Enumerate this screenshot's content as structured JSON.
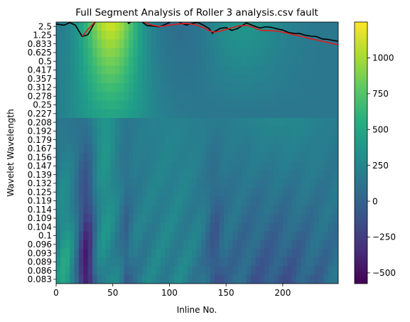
{
  "chart_data": {
    "type": "heatmap",
    "title": "Full Segment Analysis of Roller 3 analysis.csv fault",
    "xlabel": "Inline No.",
    "ylabel": "Wavelet Wavelength",
    "xlim": [
      0,
      249
    ],
    "x_ticks": [
      "0",
      "50",
      "100",
      "150",
      "200"
    ],
    "x_tick_values": [
      0,
      50,
      100,
      150,
      200
    ],
    "y_tick_labels": [
      "2.5",
      "1.25",
      "0.833",
      "0.625",
      "0.5",
      "0.417",
      "0.357",
      "0.312",
      "0.278",
      "0.25",
      "0.227",
      "0.208",
      "0.192",
      "0.179",
      "0.167",
      "0.156",
      "0.147",
      "0.139",
      "0.132",
      "0.125",
      "0.119",
      "0.114",
      "0.109",
      "0.104",
      "0.1",
      "0.096",
      "0.093",
      "0.089",
      "0.086",
      "0.083"
    ],
    "colormap": "viridis",
    "colorbar": {
      "min": -575,
      "max": 1250,
      "ticks": [
        "1000",
        "750",
        "500",
        "250",
        "0",
        "−250",
        "−500"
      ],
      "tick_values": [
        1000,
        750,
        500,
        250,
        0,
        -250,
        -500
      ]
    },
    "series": [
      {
        "color": "#000000",
        "x": [
          0,
          7,
          12,
          17,
          23,
          28,
          35,
          40,
          45,
          50,
          55,
          58,
          64,
          70,
          75,
          80,
          85,
          91,
          95,
          100,
          105,
          110,
          115,
          120,
          125,
          130,
          135,
          138,
          140,
          145,
          150,
          155,
          160,
          168,
          175,
          180,
          185,
          190,
          195,
          200,
          205,
          210,
          215,
          220,
          225,
          230,
          235,
          240,
          245,
          249
        ],
        "y": [
          29.27,
          29.14,
          29.44,
          29.14,
          27.84,
          28.04,
          29.64,
          30.04,
          30.44,
          30.84,
          31.09,
          30.59,
          29.34,
          29.9,
          29.6,
          29.1,
          29.05,
          28.95,
          29.15,
          29.45,
          29.75,
          29.4,
          29.15,
          29.35,
          29.45,
          29.15,
          28.75,
          28.2,
          28.42,
          28.78,
          28.86,
          28.54,
          28.74,
          29.4,
          29.03,
          28.82,
          28.95,
          28.89,
          28.72,
          28.58,
          28.31,
          28.19,
          28.18,
          27.98,
          27.88,
          27.83,
          27.56,
          27.51,
          27.38,
          27.29
        ]
      },
      {
        "color": "#e31a1c",
        "x": [
          23,
          28,
          35,
          40,
          45,
          50,
          55,
          58,
          64,
          70,
          75,
          80,
          85,
          91,
          95,
          100,
          105,
          110,
          115,
          120,
          125,
          130,
          135,
          138,
          140,
          145,
          150,
          155,
          160,
          168,
          175,
          180,
          185,
          190,
          195,
          200,
          205,
          210,
          215,
          220,
          225,
          230,
          235,
          240,
          245,
          249
        ],
        "y": [
          27.84,
          28.64,
          29.62,
          30.08,
          30.43,
          30.72,
          30.85,
          30.82,
          30.58,
          30.14,
          29.7,
          29.35,
          29.14,
          28.98,
          29.04,
          29.14,
          29.24,
          29.3,
          29.33,
          29.26,
          29.1,
          28.86,
          28.52,
          28.36,
          28.36,
          28.46,
          28.64,
          28.84,
          29.04,
          29.12,
          28.86,
          28.56,
          28.54,
          28.52,
          28.45,
          28.34,
          28.19,
          28.04,
          27.9,
          27.74,
          27.58,
          27.44,
          27.3,
          27.15,
          27.0,
          26.9
        ]
      }
    ]
  }
}
